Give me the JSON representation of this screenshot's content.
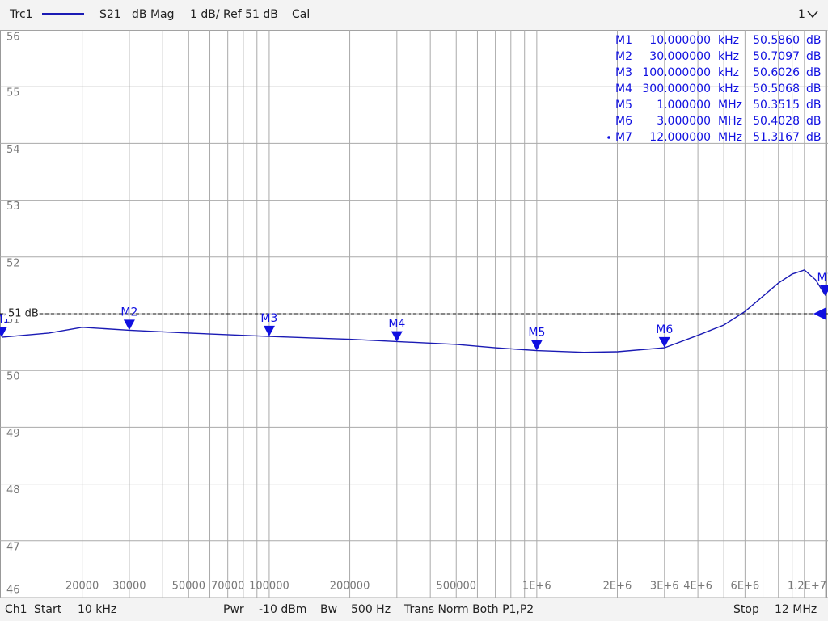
{
  "header": {
    "trace": "Trc1",
    "parameter": "S21",
    "format": "dB Mag",
    "scale": "1 dB/ Ref 51 dB",
    "cal": "Cal",
    "channel_selector": "1"
  },
  "footer": {
    "channel": "Ch1",
    "start_label": "Start",
    "start": "10 kHz",
    "power_label": "Pwr",
    "power": "-10 dBm",
    "bw_label": "Bw",
    "bw": "500 Hz",
    "mode": "Trans Norm Both P1,P2",
    "stop_label": "Stop",
    "stop": "12 MHz"
  },
  "chart_data": {
    "type": "line",
    "xscale": "log",
    "grid": true,
    "x": [
      10000,
      15000,
      20000,
      30000,
      50000,
      100000,
      200000,
      300000,
      500000,
      700000,
      1000000,
      1500000,
      2000000,
      3000000,
      4000000,
      5000000,
      6000000,
      8000000,
      9000000,
      10000000,
      11000000,
      12000000
    ],
    "series": [
      {
        "name": "Trc1",
        "color": "#1a1ab4",
        "values": [
          50.586,
          50.66,
          50.76,
          50.71,
          50.66,
          50.6,
          50.55,
          50.51,
          50.46,
          50.4,
          50.35,
          50.32,
          50.33,
          50.4,
          50.62,
          50.8,
          51.04,
          51.54,
          51.7,
          51.77,
          51.6,
          51.32
        ]
      }
    ],
    "xlim": [
      10000,
      12000000
    ],
    "ylim": [
      46,
      56
    ],
    "yticks": [
      46,
      47,
      48,
      49,
      50,
      51,
      52,
      53,
      54,
      55,
      56
    ],
    "xticks": [
      20000,
      30000,
      50000,
      70000,
      100000,
      200000,
      500000,
      {
        "value": 1000000,
        "label": "1E+6"
      },
      {
        "value": 2000000,
        "label": "2E+6"
      },
      {
        "value": 3000000,
        "label": "3E+6"
      },
      {
        "value": 4000000,
        "label": "4E+6"
      },
      {
        "value": 6000000,
        "label": "6E+6"
      },
      {
        "value": 12000000,
        "label": "1.2E+7"
      }
    ],
    "xminor": [
      40000,
      60000,
      80000,
      90000,
      300000,
      400000,
      600000,
      700000,
      800000,
      900000,
      5000000,
      7000000,
      8000000,
      9000000,
      10000000
    ],
    "ref": {
      "value": 51,
      "label": "51 dB"
    },
    "marker_color": "#1010e0",
    "markers": [
      {
        "name": "M1",
        "x": 10000,
        "x_label": "10.000000",
        "x_unit": "kHz",
        "value": 50.586,
        "value_label": "50.5860",
        "unit": "dB"
      },
      {
        "name": "M2",
        "x": 30000,
        "x_label": "30.000000",
        "x_unit": "kHz",
        "value": 50.7097,
        "value_label": "50.7097",
        "unit": "dB"
      },
      {
        "name": "M3",
        "x": 100000,
        "x_label": "100.000000",
        "x_unit": "kHz",
        "value": 50.6026,
        "value_label": "50.6026",
        "unit": "dB"
      },
      {
        "name": "M4",
        "x": 300000,
        "x_label": "300.000000",
        "x_unit": "kHz",
        "value": 50.5068,
        "value_label": "50.5068",
        "unit": "dB"
      },
      {
        "name": "M5",
        "x": 1000000,
        "x_label": "1.000000",
        "x_unit": "MHz",
        "value": 50.3515,
        "value_label": "50.3515",
        "unit": "dB"
      },
      {
        "name": "M6",
        "x": 3000000,
        "x_label": "3.000000",
        "x_unit": "MHz",
        "value": 50.4028,
        "value_label": "50.4028",
        "unit": "dB"
      },
      {
        "name": "M7",
        "x": 12000000,
        "x_label": "12.000000",
        "x_unit": "MHz",
        "value": 51.3167,
        "value_label": "51.3167",
        "unit": "dB"
      }
    ]
  }
}
